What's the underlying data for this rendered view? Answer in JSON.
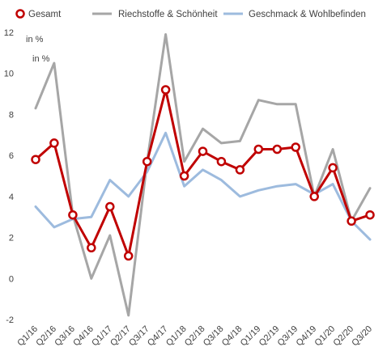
{
  "chart_data": {
    "type": "line",
    "categories": [
      "Q1/16",
      "Q2/16",
      "Q3/16",
      "Q4/16",
      "Q1/17",
      "Q2/17",
      "Q3/17",
      "Q4/17",
      "Q1/18",
      "Q2/18",
      "Q3/18",
      "Q4/18",
      "Q1/19",
      "Q2/19",
      "Q3/19",
      "Q4/19",
      "Q1/20",
      "Q2/20",
      "Q3/20"
    ],
    "series": [
      {
        "name": "Gesamt",
        "color": "#c00000",
        "marker": "circle",
        "values": [
          5.8,
          6.6,
          3.1,
          1.5,
          3.5,
          1.1,
          5.7,
          9.2,
          5.0,
          6.2,
          5.7,
          5.3,
          6.3,
          6.3,
          6.4,
          4.0,
          5.4,
          2.8,
          3.1
        ]
      },
      {
        "name": "Riechstoffe & Schönheit",
        "color": "#a6a6a6",
        "marker": "none",
        "values": [
          8.3,
          10.5,
          3.1,
          0.0,
          2.1,
          -1.8,
          5.7,
          11.9,
          5.7,
          7.3,
          6.6,
          6.7,
          8.7,
          8.5,
          8.5,
          4.0,
          6.3,
          2.8,
          4.4
        ]
      },
      {
        "name": "Geschmack & Wohlbefinden",
        "color": "#9dbbde",
        "marker": "none",
        "values": [
          3.5,
          2.5,
          2.9,
          3.0,
          4.8,
          4.0,
          5.2,
          7.1,
          4.5,
          5.3,
          4.8,
          4.0,
          4.3,
          4.5,
          4.6,
          4.1,
          4.6,
          2.8,
          1.9
        ]
      }
    ],
    "ylim": [
      -2,
      12
    ],
    "yticks": [
      -2,
      0,
      2,
      4,
      6,
      8,
      10,
      12
    ],
    "unit_labels": [
      "in %",
      "in %"
    ],
    "grid": false,
    "legend": "top"
  }
}
